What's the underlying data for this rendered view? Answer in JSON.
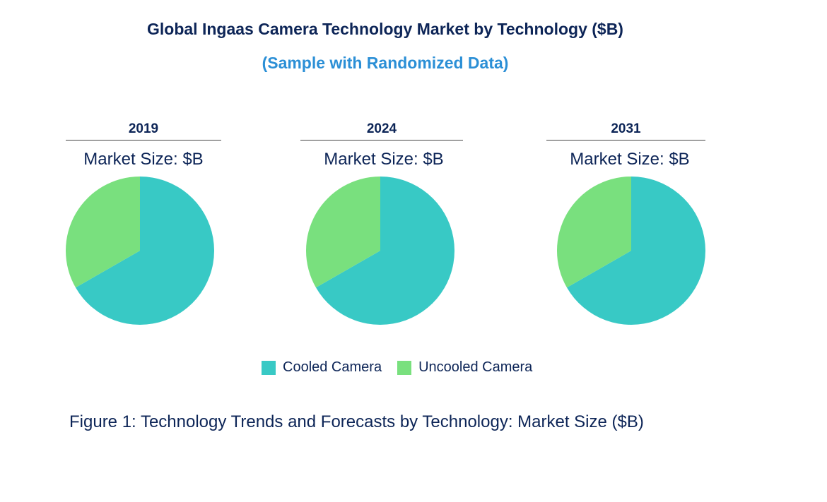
{
  "chart_data": {
    "type": "pie",
    "title": "Global Ingaas Camera Technology Market by Technology ($B)",
    "subtitle": "(Sample with Randomized Data)",
    "categories": [
      "Cooled Camera",
      "Uncooled Camera"
    ],
    "colors": [
      "#38c9c5",
      "#79e07e"
    ],
    "pies": [
      {
        "year": "2019",
        "label": "Market Size: $B",
        "values": [
          66.7,
          33.3
        ]
      },
      {
        "year": "2024",
        "label": "Market Size: $B",
        "values": [
          66.7,
          33.3
        ]
      },
      {
        "year": "2031",
        "label": "Market Size: $B",
        "values": [
          66.7,
          33.3
        ]
      }
    ],
    "legend_position": "bottom"
  },
  "caption": "Figure 1: Technology Trends and Forecasts by Technology: Market Size ($B)"
}
